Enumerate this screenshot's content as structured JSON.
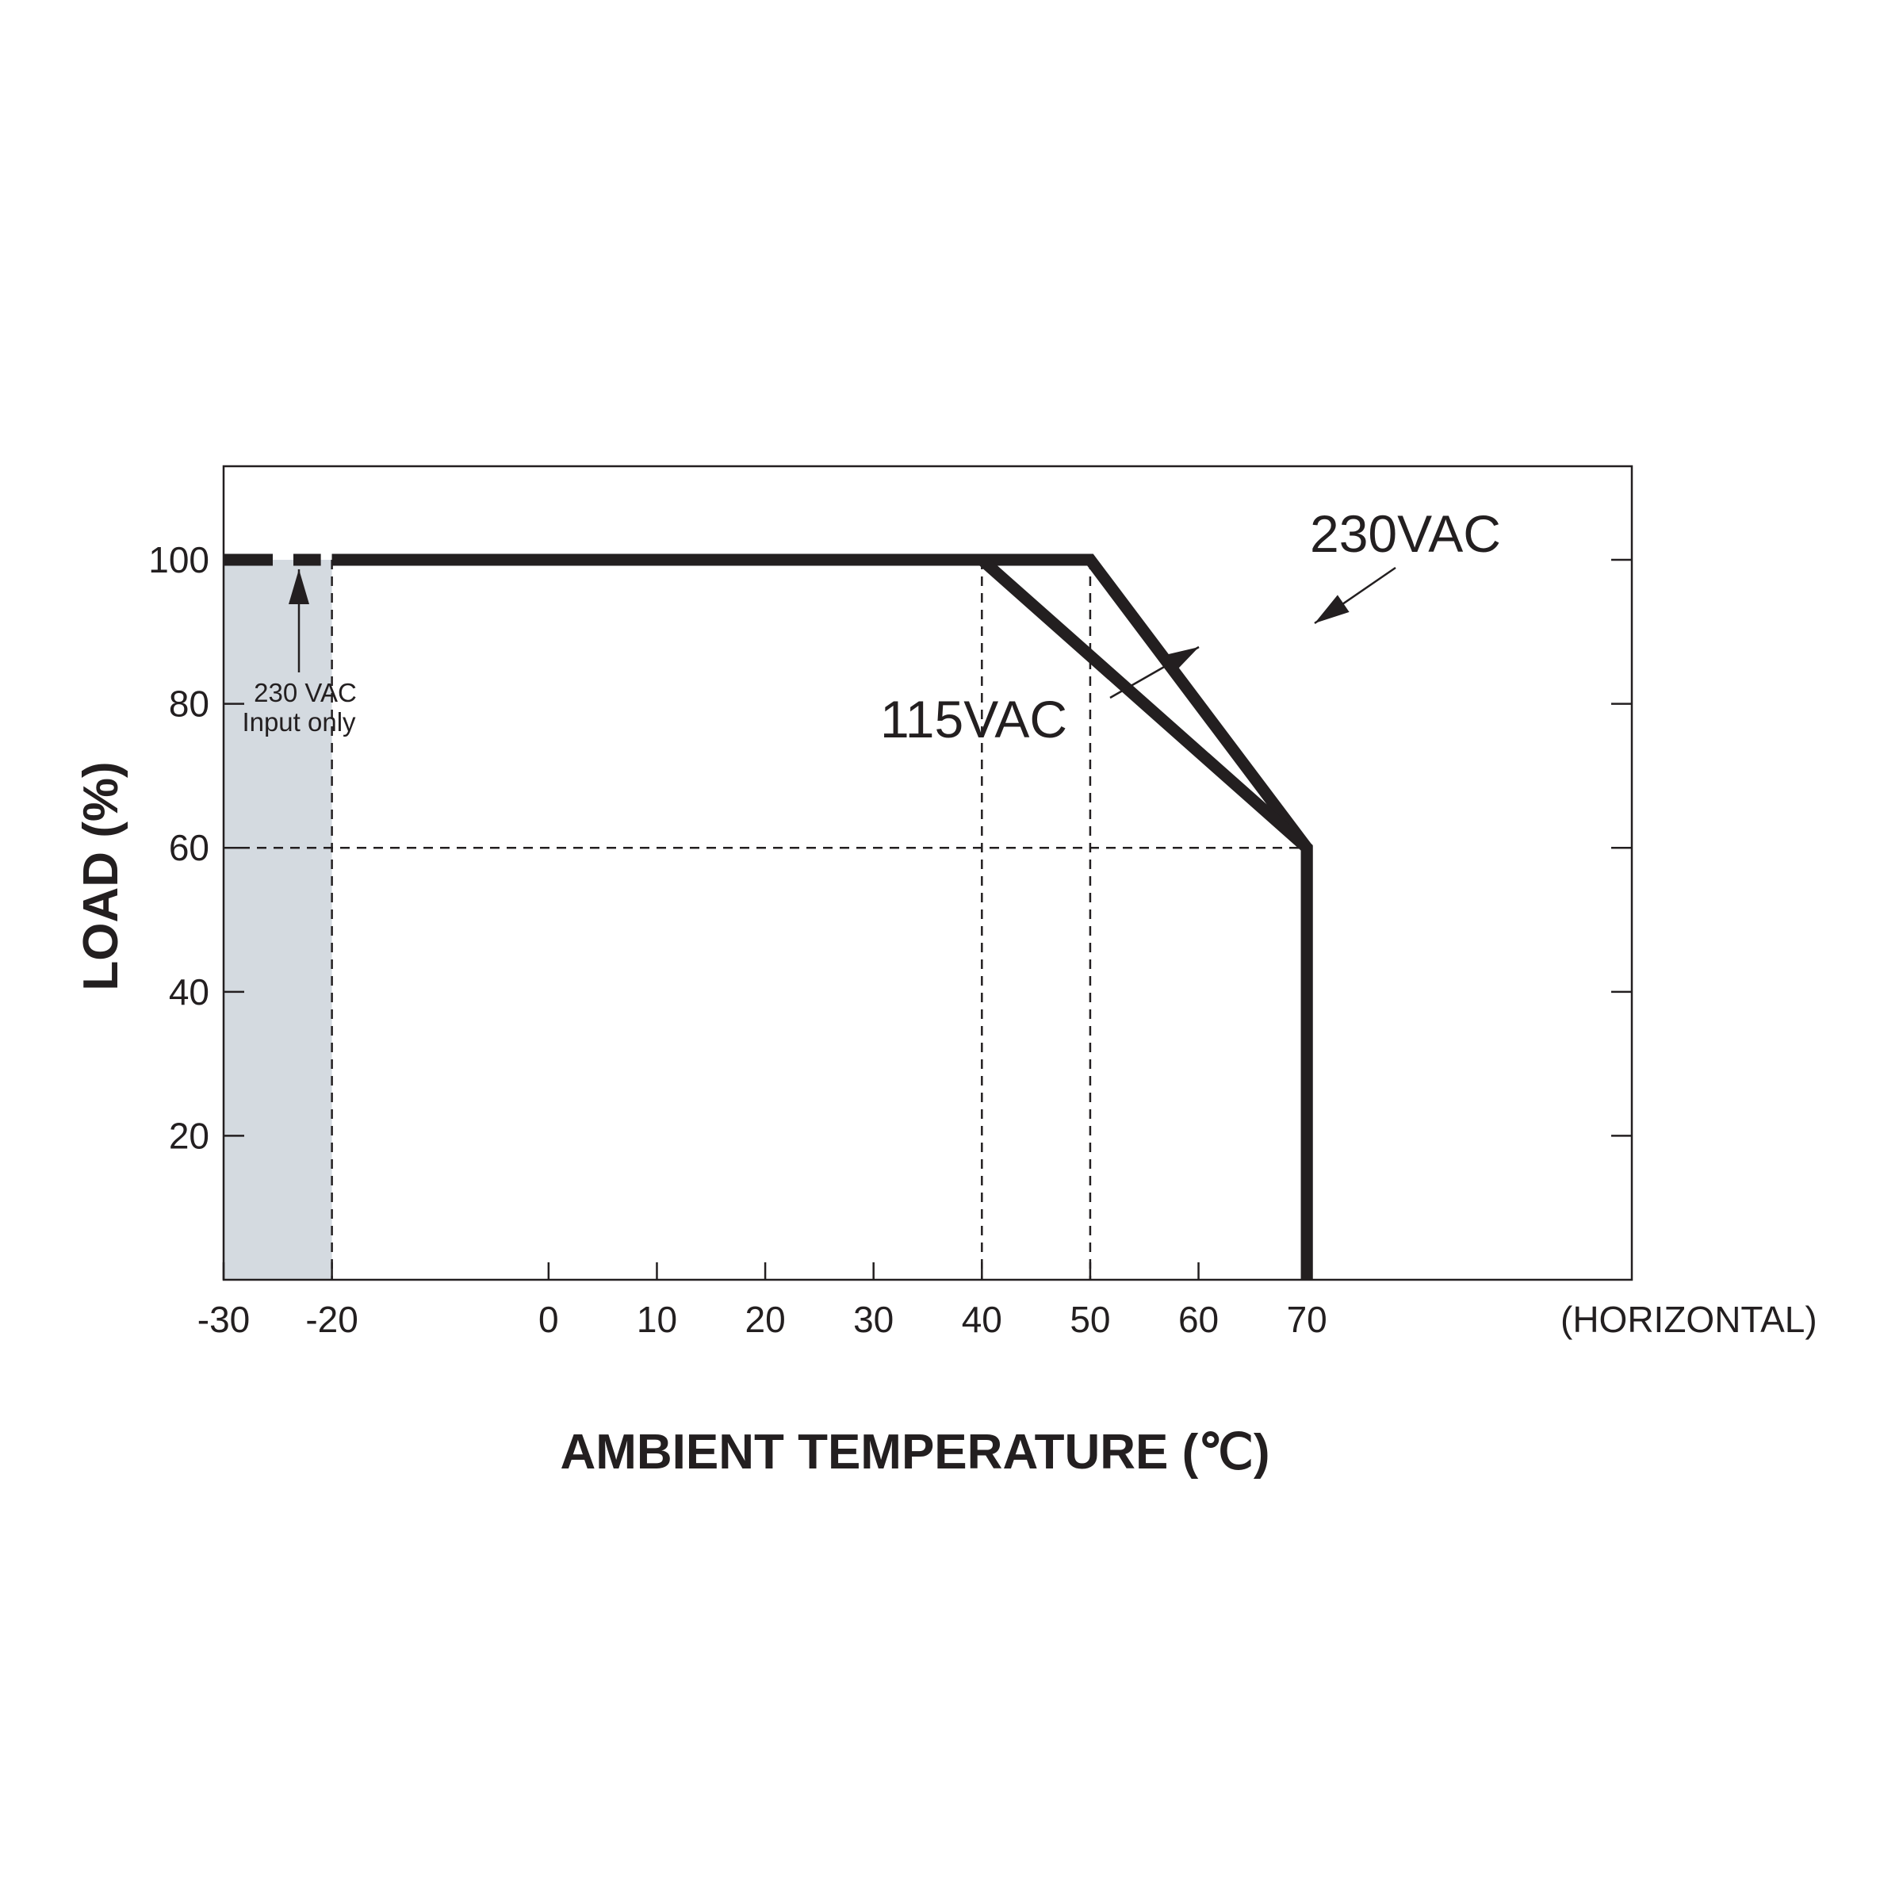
{
  "chart_data": {
    "type": "line",
    "title": "",
    "xlabel": "AMBIENT TEMPERATURE (℃)",
    "ylabel": "LOAD (%)",
    "x_ticks": [
      -30,
      -20,
      0,
      10,
      20,
      30,
      40,
      50,
      60,
      70
    ],
    "x_tick_labels": [
      "-30",
      "-20",
      "0",
      "10",
      "20",
      "30",
      "40",
      "50",
      "60",
      "70"
    ],
    "x_axis_suffix": "(HORIZONTAL)",
    "y_ticks": [
      20,
      40,
      60,
      80,
      100
    ],
    "y_tick_labels": [
      "20",
      "40",
      "60",
      "80",
      "100"
    ],
    "xlim": [
      -30,
      100
    ],
    "ylim": [
      0,
      113
    ],
    "grid": false,
    "reference_lines": {
      "x": [
        -20,
        40,
        50
      ],
      "y": [
        60
      ]
    },
    "shaded_region": {
      "x": [
        -30,
        -20
      ],
      "y": [
        0,
        100
      ],
      "color": "#d4dae0"
    },
    "series": [
      {
        "name": "230VAC",
        "x": [
          -30,
          -20,
          50,
          70,
          70
        ],
        "y": [
          100,
          100,
          100,
          60,
          0
        ]
      },
      {
        "name": "115VAC",
        "x": [
          -20,
          40,
          70,
          70
        ],
        "y": [
          100,
          100,
          60,
          0
        ]
      }
    ],
    "annotations": [
      {
        "line1": "230 VAC",
        "line2": "Input only"
      }
    ],
    "colors": {
      "line": "#231f20",
      "shade": "#d4dae0",
      "axis": "#231f20"
    }
  }
}
